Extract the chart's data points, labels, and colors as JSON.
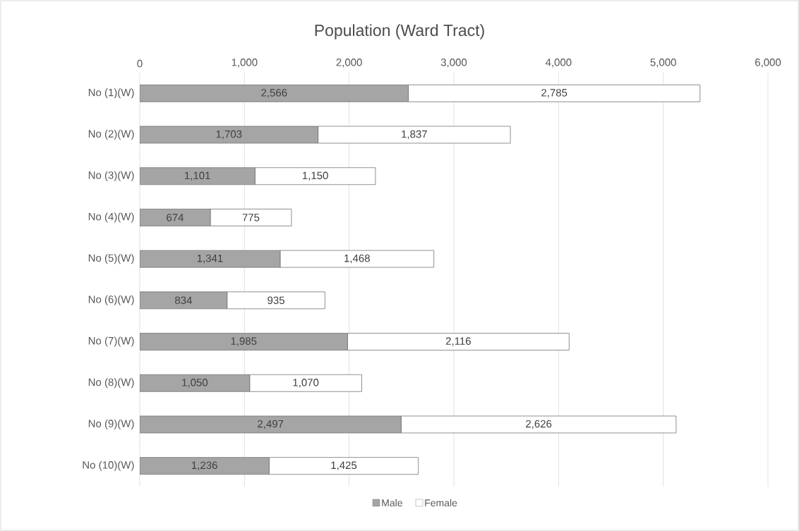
{
  "chart_data": {
    "type": "bar",
    "orientation": "horizontal",
    "stacked": true,
    "title": "Population (Ward Tract)",
    "categories": [
      "No (1)(W)",
      "No (2)(W)",
      "No (3)(W)",
      "No (4)(W)",
      "No (5)(W)",
      "No (6)(W)",
      "No (7)(W)",
      "No (8)(W)",
      "No (9)(W)",
      "No (10)(W)"
    ],
    "series": [
      {
        "name": "Male",
        "color": "#a5a5a5",
        "values": [
          2566,
          1703,
          1101,
          674,
          1341,
          834,
          1985,
          1050,
          2497,
          1236
        ],
        "value_labels": [
          "2,566",
          "1,703",
          "1,101",
          "674",
          "1,341",
          "834",
          "1,985",
          "1,050",
          "2,497",
          "1,236"
        ]
      },
      {
        "name": "Female",
        "color": "#ffffff",
        "values": [
          2785,
          1837,
          1150,
          775,
          1468,
          935,
          2116,
          1070,
          2626,
          1425
        ],
        "value_labels": [
          "2,785",
          "1,837",
          "1,150",
          "775",
          "1,468",
          "935",
          "2,116",
          "1,070",
          "2,626",
          "1,425"
        ]
      }
    ],
    "xlim": [
      0,
      6000
    ],
    "xticks": [
      0,
      {
        "value": 1000,
        "label": "1,000"
      },
      {
        "value": 2000,
        "label": "2,000"
      },
      {
        "value": 3000,
        "label": "3,000"
      },
      {
        "value": 4000,
        "label": "4,000"
      },
      {
        "value": 5000,
        "label": "5,000"
      },
      {
        "value": 6000,
        "label": "6,000"
      }
    ],
    "grid": "x",
    "legend": "bottom"
  }
}
